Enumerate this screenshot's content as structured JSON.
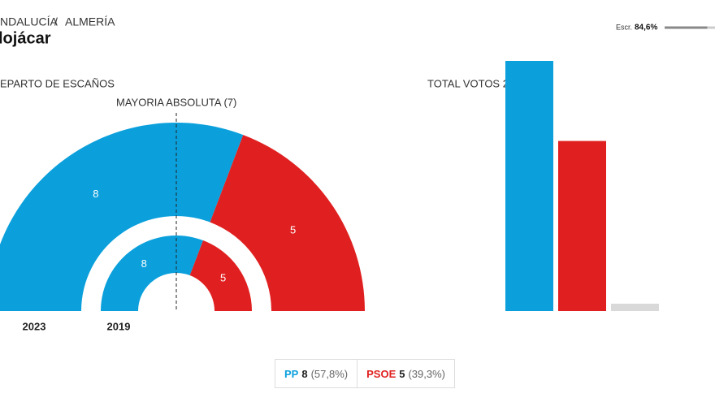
{
  "breadcrumb": [
    "NDALUCÍA",
    "ALMERÍA"
  ],
  "breadcrumb_separator": "/",
  "title": "lojácar",
  "scrutiny": {
    "label": "Escr.",
    "value": 84.6,
    "value_label": "84,6%"
  },
  "chart_data": [
    {
      "type": "hemicycle",
      "title": "EPARTO DE ESCAÑOS",
      "majority_label": "MAYORIA ABSOLUTA (7)",
      "colors": [
        "#0ba0dc",
        "#e02020"
      ],
      "rings": [
        {
          "name": "2023",
          "values": [
            8,
            5
          ]
        },
        {
          "name": "2019",
          "values": [
            8,
            5
          ]
        }
      ]
    },
    {
      "type": "bar",
      "title": "TOTAL VOTOS 2",
      "values": [
        57.8,
        39.3,
        1.7
      ],
      "colors": [
        "#0ba0dc",
        "#e02020",
        "#d9d9d9"
      ]
    }
  ],
  "legend": [
    {
      "party": "PP",
      "seats": 8,
      "pct": 57.8,
      "pct_label": "(57,8%)",
      "color": "#0ba0dc"
    },
    {
      "party": "PSOE",
      "seats": 5,
      "pct": 39.3,
      "pct_label": "(39,3%)",
      "color": "#e02020"
    }
  ]
}
